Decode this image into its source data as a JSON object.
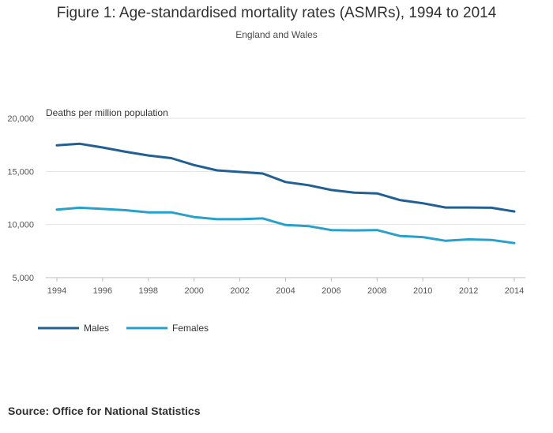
{
  "chart_data": {
    "type": "line",
    "title": "Figure 1: Age-standardised mortality rates (ASMRs), 1994 to 2014",
    "subtitle": "England and Wales",
    "ylabel": "Deaths per million population",
    "xlabel": "",
    "x": [
      1994,
      1995,
      1996,
      1997,
      1998,
      1999,
      2000,
      2001,
      2002,
      2003,
      2004,
      2005,
      2006,
      2007,
      2008,
      2009,
      2010,
      2011,
      2012,
      2013,
      2014
    ],
    "xticks": [
      "1994",
      "1996",
      "1998",
      "2000",
      "2002",
      "2004",
      "2006",
      "2008",
      "2010",
      "2012",
      "2014"
    ],
    "yticks": [
      "5,000",
      "10,000",
      "15,000",
      "20,000"
    ],
    "ylim": [
      5000,
      20000
    ],
    "xlim": [
      1994,
      2014
    ],
    "grid": true,
    "legend_position": "bottom-left",
    "series": [
      {
        "name": "Males",
        "color": "#206095",
        "values": [
          17450,
          17600,
          17250,
          16850,
          16500,
          16250,
          15600,
          15100,
          14950,
          14800,
          14000,
          13700,
          13250,
          13000,
          12930,
          12300,
          12000,
          11600,
          11600,
          11580,
          11230
        ]
      },
      {
        "name": "Females",
        "color": "#27a0cc",
        "values": [
          11400,
          11580,
          11470,
          11350,
          11150,
          11150,
          10700,
          10500,
          10500,
          10580,
          9950,
          9850,
          9480,
          9450,
          9480,
          8920,
          8820,
          8470,
          8600,
          8550,
          8250
        ]
      }
    ]
  },
  "source": "Source: Office for National Statistics"
}
